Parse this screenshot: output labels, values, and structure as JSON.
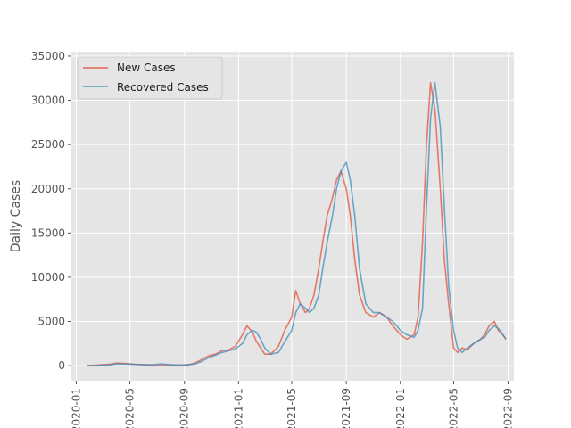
{
  "chart_data": {
    "type": "line",
    "title": "",
    "xlabel": "",
    "ylabel": "Daily Cases",
    "x_axis_type": "date",
    "xlim": [
      "2019-12-21",
      "2022-09-14"
    ],
    "ylim": [
      -1700,
      35500
    ],
    "xticks": [
      "2020-01-01",
      "2020-05-01",
      "2020-09-01",
      "2021-01-01",
      "2021-05-01",
      "2021-09-01",
      "2022-01-01",
      "2022-05-01",
      "2022-09-01"
    ],
    "xtick_labels": [
      "2020-01",
      "2020-05",
      "2020-09",
      "2021-01",
      "2021-05",
      "2021-09",
      "2022-01",
      "2022-05",
      "2022-09"
    ],
    "yticks": [
      0,
      5000,
      10000,
      15000,
      20000,
      25000,
      30000,
      35000
    ],
    "ytick_labels": [
      "0",
      "5000",
      "10000",
      "15000",
      "20000",
      "25000",
      "30000",
      "35000"
    ],
    "grid": true,
    "style": "ggplot",
    "legend": {
      "position": "top-left"
    },
    "series": [
      {
        "name": "New Cases",
        "color": "#e24a33",
        "dates": [
          "2020-01-25",
          "2020-02-15",
          "2020-03-15",
          "2020-04-01",
          "2020-04-20",
          "2020-05-10",
          "2020-06-01",
          "2020-06-20",
          "2020-07-10",
          "2020-08-01",
          "2020-08-20",
          "2020-09-10",
          "2020-09-25",
          "2020-10-10",
          "2020-10-25",
          "2020-11-10",
          "2020-11-25",
          "2020-12-10",
          "2020-12-25",
          "2021-01-10",
          "2021-01-20",
          "2021-02-01",
          "2021-02-10",
          "2021-02-20",
          "2021-03-01",
          "2021-03-15",
          "2021-04-01",
          "2021-04-15",
          "2021-05-01",
          "2021-05-10",
          "2021-05-20",
          "2021-06-01",
          "2021-06-10",
          "2021-06-20",
          "2021-07-01",
          "2021-07-10",
          "2021-07-20",
          "2021-08-01",
          "2021-08-10",
          "2021-08-20",
          "2021-09-01",
          "2021-09-10",
          "2021-09-20",
          "2021-10-01",
          "2021-10-15",
          "2021-11-01",
          "2021-11-15",
          "2021-12-01",
          "2021-12-15",
          "2022-01-01",
          "2022-01-15",
          "2022-02-01",
          "2022-02-10",
          "2022-02-20",
          "2022-03-01",
          "2022-03-10",
          "2022-03-20",
          "2022-04-01",
          "2022-04-10",
          "2022-04-20",
          "2022-05-01",
          "2022-05-10",
          "2022-05-20",
          "2022-06-01",
          "2022-06-15",
          "2022-07-01",
          "2022-07-10",
          "2022-07-20",
          "2022-08-01",
          "2022-08-10",
          "2022-08-20",
          "2022-08-27"
        ],
        "values": [
          0,
          50,
          150,
          300,
          250,
          150,
          100,
          50,
          50,
          50,
          50,
          100,
          300,
          700,
          1100,
          1300,
          1700,
          1800,
          2200,
          3500,
          4500,
          3800,
          2800,
          2000,
          1300,
          1300,
          2200,
          4000,
          5500,
          8500,
          7000,
          6000,
          6500,
          8000,
          11000,
          14000,
          17000,
          19000,
          21000,
          22000,
          20000,
          17000,
          12000,
          8000,
          6000,
          5500,
          6000,
          5500,
          4500,
          3500,
          3000,
          3500,
          5500,
          14000,
          25000,
          32000,
          29000,
          20000,
          12000,
          7000,
          2000,
          1500,
          2000,
          1800,
          2500,
          3000,
          3500,
          4500,
          5000,
          4000,
          3500,
          3000
        ]
      },
      {
        "name": "Recovered Cases",
        "color": "#348abd",
        "dates": [
          "2020-01-25",
          "2020-02-15",
          "2020-03-15",
          "2020-04-01",
          "2020-04-20",
          "2020-05-10",
          "2020-06-01",
          "2020-06-20",
          "2020-07-10",
          "2020-08-01",
          "2020-08-20",
          "2020-09-10",
          "2020-09-25",
          "2020-10-10",
          "2020-10-25",
          "2020-11-10",
          "2020-11-25",
          "2020-12-10",
          "2020-12-25",
          "2021-01-10",
          "2021-01-20",
          "2021-02-01",
          "2021-02-10",
          "2021-02-20",
          "2021-03-01",
          "2021-03-15",
          "2021-04-01",
          "2021-04-15",
          "2021-05-01",
          "2021-05-10",
          "2021-05-20",
          "2021-06-01",
          "2021-06-10",
          "2021-06-20",
          "2021-07-01",
          "2021-07-10",
          "2021-07-20",
          "2021-08-01",
          "2021-08-10",
          "2021-08-20",
          "2021-09-01",
          "2021-09-10",
          "2021-09-20",
          "2021-10-01",
          "2021-10-15",
          "2021-11-01",
          "2021-11-15",
          "2021-12-01",
          "2021-12-15",
          "2022-01-01",
          "2022-01-15",
          "2022-02-01",
          "2022-02-10",
          "2022-02-20",
          "2022-03-01",
          "2022-03-10",
          "2022-03-20",
          "2022-04-01",
          "2022-04-10",
          "2022-04-20",
          "2022-05-01",
          "2022-05-10",
          "2022-05-20",
          "2022-06-01",
          "2022-06-15",
          "2022-07-01",
          "2022-07-10",
          "2022-07-20",
          "2022-08-01",
          "2022-08-10",
          "2022-08-20",
          "2022-08-27"
        ],
        "values": [
          0,
          20,
          80,
          200,
          200,
          150,
          100,
          100,
          200,
          100,
          50,
          100,
          200,
          500,
          900,
          1200,
          1500,
          1700,
          1900,
          2500,
          3500,
          4000,
          3800,
          3000,
          2000,
          1300,
          1500,
          2700,
          4000,
          6000,
          7000,
          6500,
          6000,
          6500,
          8000,
          11000,
          14000,
          17000,
          20000,
          22000,
          23000,
          21000,
          17000,
          11000,
          7000,
          6000,
          6000,
          5500,
          5000,
          4000,
          3500,
          3200,
          4000,
          6500,
          18000,
          28000,
          32000,
          27000,
          18000,
          9000,
          4000,
          2000,
          1500,
          2000,
          2500,
          3000,
          3200,
          4000,
          4500,
          4200,
          3500,
          3000
        ]
      }
    ]
  }
}
